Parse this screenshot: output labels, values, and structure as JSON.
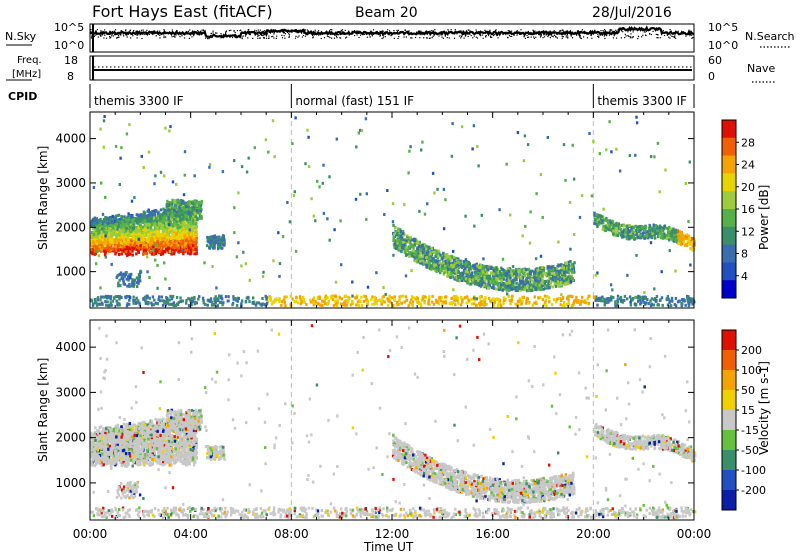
{
  "header": {
    "station": "Fort Hays East (fitACF)",
    "beam": "Beam 20",
    "date": "28/Jul/2016"
  },
  "strip_labels": {
    "nsky": "N.Sky",
    "nsearch": "N.Search",
    "freq_line1": "Freq.",
    "freq_line2": "[MHz]",
    "nave": "Nave",
    "cpid": "CPID"
  },
  "noise_axis": {
    "top": "10^5",
    "bottom": "10^0"
  },
  "freq_axis": {
    "left_top": "18",
    "left_bottom": "8",
    "right_top": "60",
    "right_bottom": "0"
  },
  "cpid_segments": [
    {
      "label": "themis 3300 IF",
      "start_hour": 0,
      "end_hour": 8
    },
    {
      "label": "normal (fast) 151 IF",
      "start_hour": 8,
      "end_hour": 20
    },
    {
      "label": "themis 3300 IF",
      "start_hour": 20,
      "end_hour": 24
    }
  ],
  "chart_data": [
    {
      "type": "heatmap",
      "quantity": "Power",
      "ylabel": "Slant Range [km]",
      "ylim": [
        180,
        4600
      ],
      "y_ticks": [
        "1000",
        "2000",
        "3000",
        "4000"
      ],
      "x_ticks": [
        "00:00",
        "04:00",
        "08:00",
        "12:00",
        "16:00",
        "20:00",
        "00:00"
      ],
      "xlim_hours": [
        0,
        24
      ],
      "colorbar_label": "Power [dB]",
      "colorbar_ticks": [
        "4",
        "8",
        "12",
        "16",
        "20",
        "24",
        "28"
      ],
      "colorbar_range": [
        0,
        30
      ],
      "colors": [
        "#0000cc",
        "#2050c0",
        "#3a6db0",
        "#3a8f6a",
        "#55b04a",
        "#9ccc3c",
        "#e8d400",
        "#f4a300",
        "#f06000",
        "#e01000"
      ]
    },
    {
      "type": "heatmap",
      "quantity": "Velocity",
      "xlabel": "Time UT",
      "ylabel": "Slant Range [km]",
      "ylim": [
        180,
        4600
      ],
      "y_ticks": [
        "1000",
        "2000",
        "3000",
        "4000"
      ],
      "x_ticks": [
        "00:00",
        "04:00",
        "08:00",
        "12:00",
        "16:00",
        "20:00",
        "00:00"
      ],
      "xlim_hours": [
        0,
        24
      ],
      "colorbar_label": "Velocity [m s-1]",
      "colorbar_ticks": [
        "200",
        "100",
        "50",
        "15",
        "-15",
        "-50",
        "-100",
        "-200"
      ],
      "colors": [
        "#0a1fa8",
        "#2050c0",
        "#3a8f6a",
        "#66c040",
        "#c8c8c8",
        "#f0d000",
        "#f4a300",
        "#f06000",
        "#e01000"
      ]
    }
  ]
}
